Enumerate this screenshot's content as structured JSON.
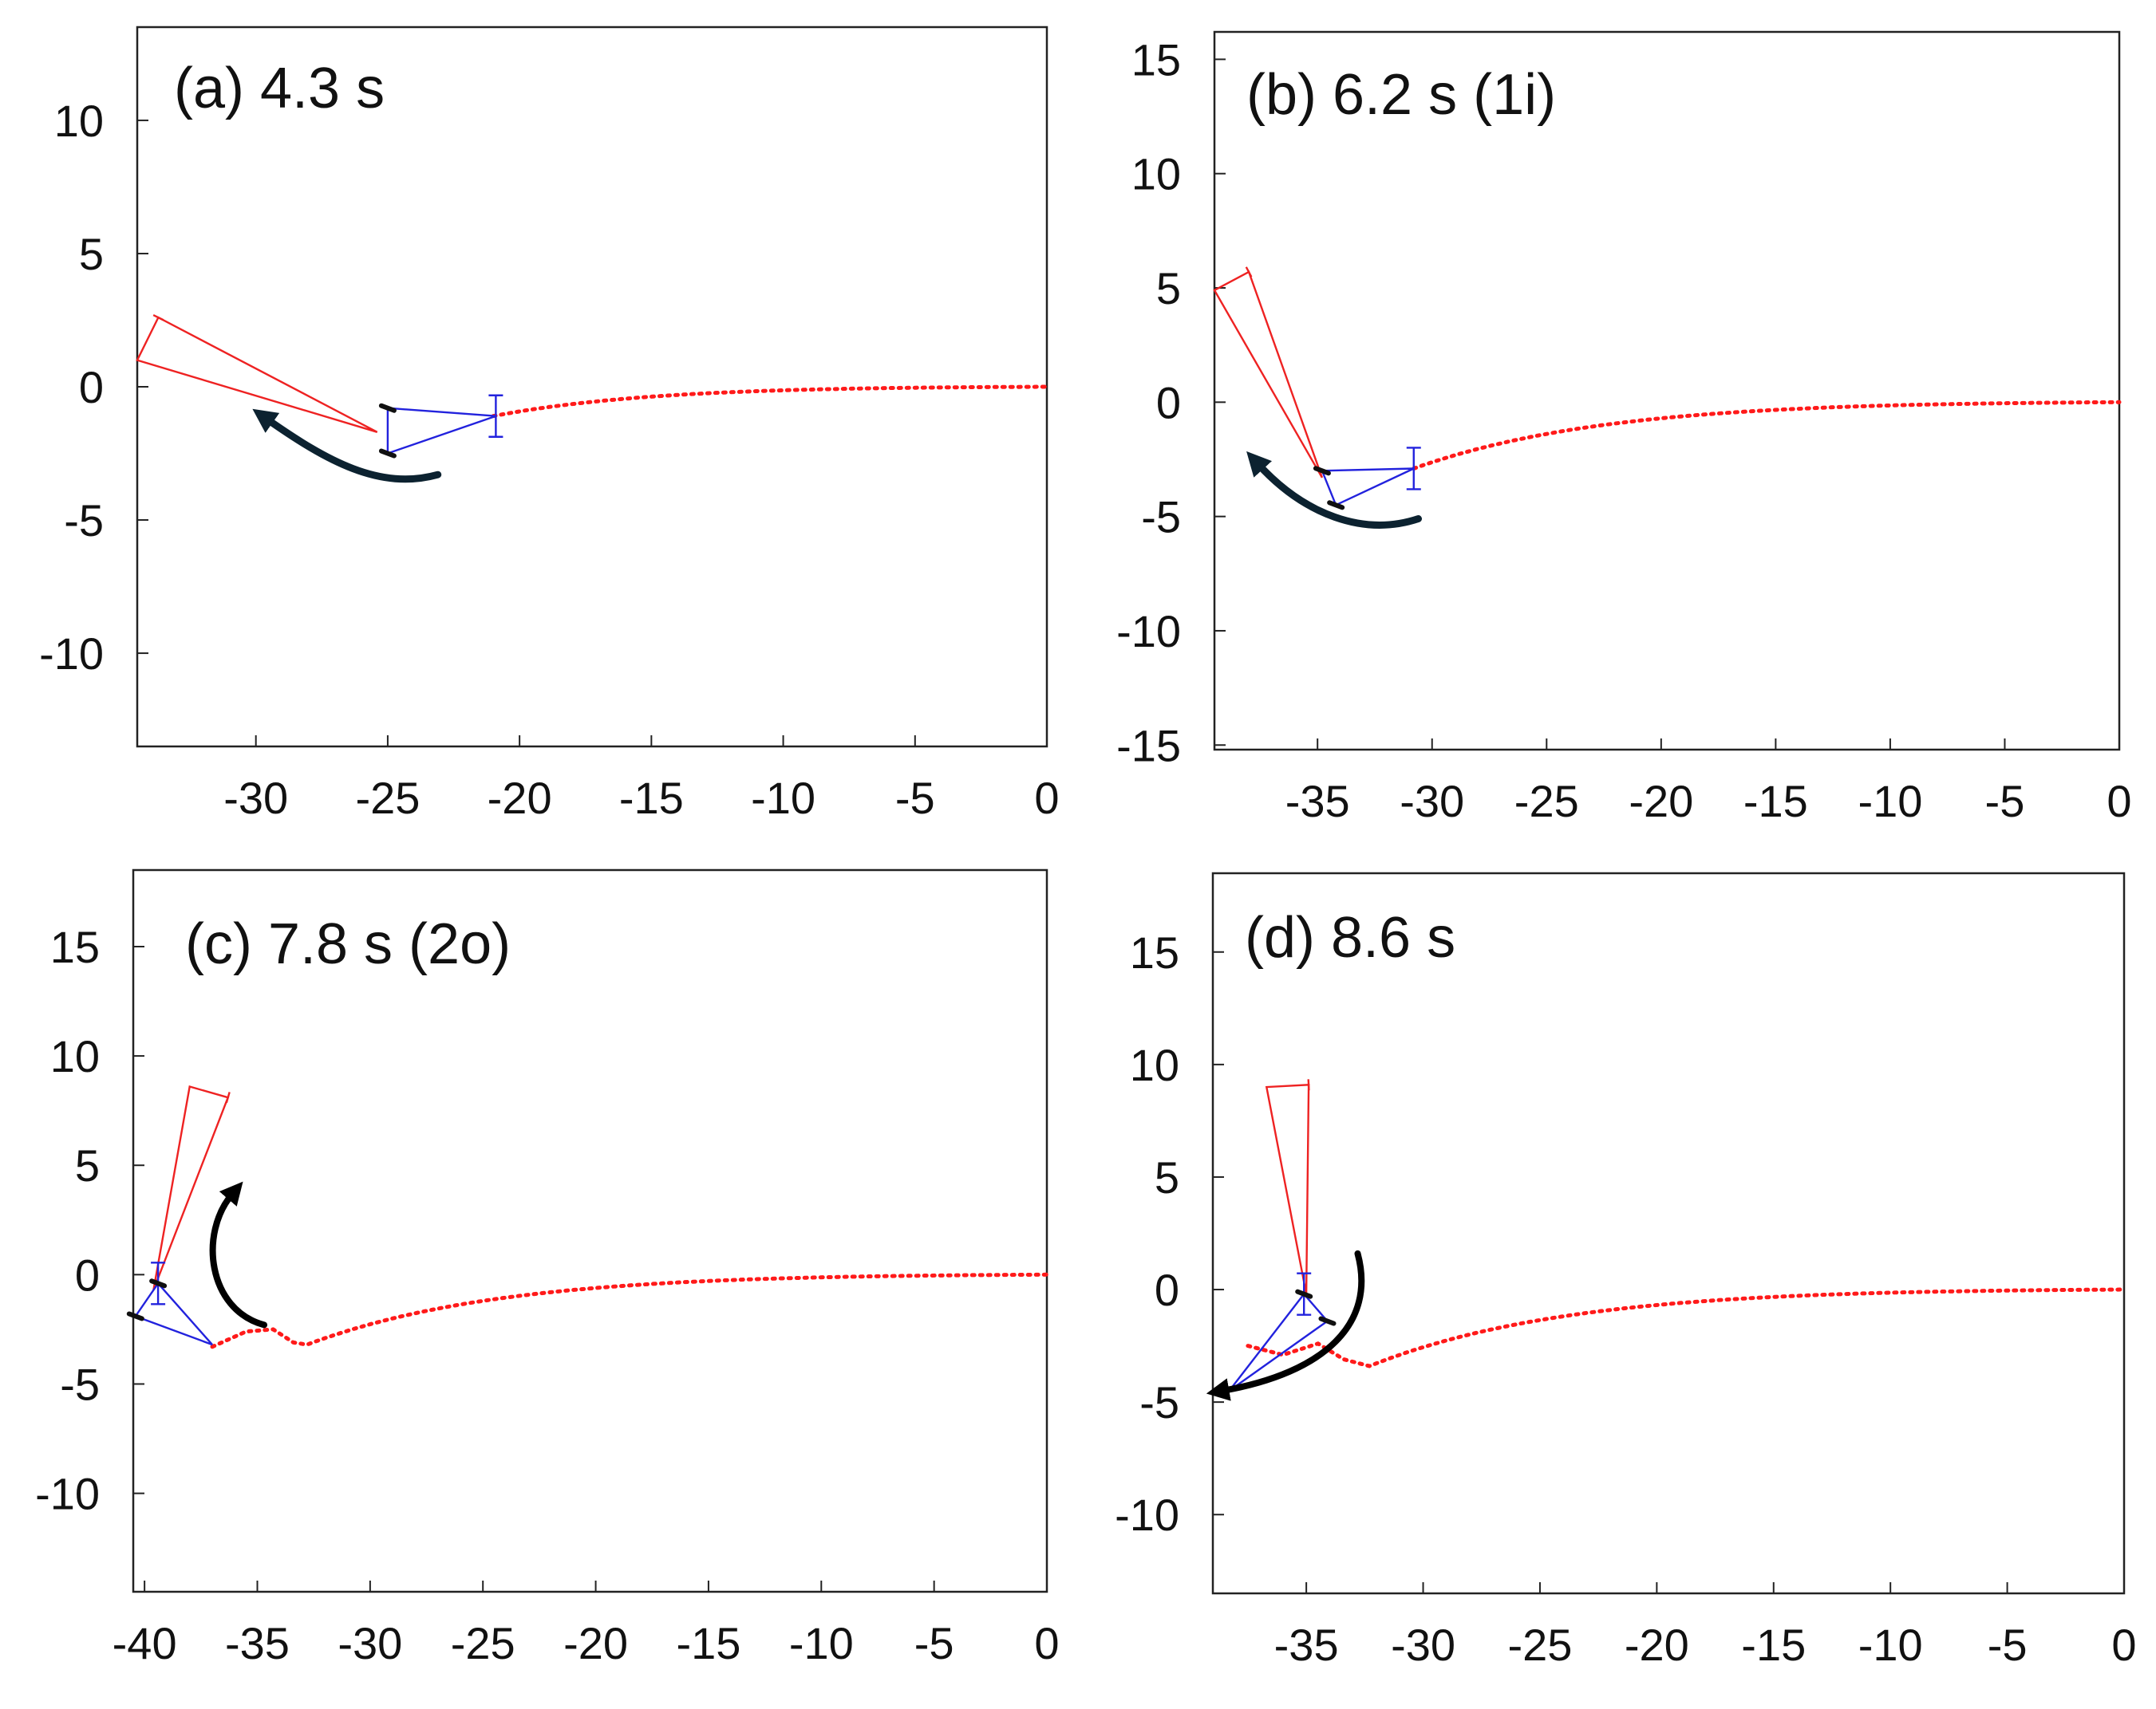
{
  "figure": {
    "description_panels": 4,
    "colors": {
      "trajectory": "#ff1a1a",
      "red_link": "#ee2222",
      "blue_link": "#2222dd",
      "joint": "#111111",
      "arrow": "#0c2230",
      "arrow_dark": "#000000"
    }
  },
  "chart_data": [
    {
      "type": "scatter",
      "panel": "a",
      "title": "(a) 4.3 s",
      "xlim": [
        -34.5,
        0
      ],
      "ylim": [
        -13.5,
        13.5
      ],
      "xticks": [
        -30,
        -25,
        -20,
        -15,
        -10,
        -5,
        0
      ],
      "xtick_labels": [
        "-30",
        "-25",
        "-20",
        "-15",
        "-10",
        "-5",
        "0"
      ],
      "yticks": [
        -10,
        -5,
        0,
        5,
        10
      ],
      "ytick_labels": [
        "-10",
        "-5",
        "0",
        "5",
        "10"
      ],
      "trajectory": {
        "x0": -21,
        "y0": -1.1,
        "decay": 8,
        "wiggle": null
      },
      "red_link": [
        [
          -25.4,
          -1.7
        ],
        [
          -34.5,
          1.0
        ],
        [
          -33.7,
          2.6
        ]
      ],
      "blue_link": [
        [
          -25.0,
          -0.8
        ],
        [
          -20.9,
          -1.1
        ],
        [
          -25.0,
          -2.5
        ]
      ],
      "joints": [
        [
          -25.0,
          -0.8
        ],
        [
          -25.0,
          -2.5
        ]
      ],
      "arrow": {
        "path": [
          [
            -23.1,
            -3.3
          ],
          [
            -25.3,
            -3.9
          ],
          [
            -27.3,
            -2.8
          ],
          [
            -29.6,
            -1.2
          ]
        ],
        "color": "#0c2230",
        "width": 9
      }
    },
    {
      "type": "scatter",
      "panel": "b",
      "title": "(b) 6.2 s (1i)",
      "xlim": [
        -39.5,
        0
      ],
      "ylim": [
        -15.2,
        16.2
      ],
      "xticks": [
        -35,
        -30,
        -25,
        -20,
        -15,
        -10,
        -5,
        0
      ],
      "xtick_labels": [
        "-35",
        "-30",
        "-25",
        "-20",
        "-15",
        "-10",
        "-5",
        "0"
      ],
      "yticks": [
        -15,
        -10,
        -5,
        0,
        5,
        10,
        15
      ],
      "ytick_labels": [
        "-15",
        "-10",
        "-5",
        "0",
        "5",
        "10",
        "15"
      ],
      "trajectory": {
        "x0": -30.8,
        "y0": -2.9,
        "decay": 11,
        "wiggle": null
      },
      "red_link": [
        [
          -34.8,
          -3.3
        ],
        [
          -39.5,
          4.9
        ],
        [
          -38.0,
          5.7
        ]
      ],
      "blue_link": [
        [
          -34.8,
          -3.0
        ],
        [
          -30.8,
          -2.9
        ],
        [
          -34.2,
          -4.5
        ]
      ],
      "joints": [
        [
          -34.8,
          -3.0
        ],
        [
          -34.2,
          -4.5
        ]
      ],
      "arrow": {
        "path": [
          [
            -30.6,
            -5.1
          ],
          [
            -33.0,
            -5.9
          ],
          [
            -35.6,
            -4.9
          ],
          [
            -37.6,
            -2.7
          ]
        ],
        "color": "#0c2230",
        "width": 9
      }
    },
    {
      "type": "scatter",
      "panel": "c",
      "title": "(c) 7.8 s (2o)",
      "xlim": [
        -40.5,
        0
      ],
      "ylim": [
        -14.5,
        18.5
      ],
      "xticks": [
        -40,
        -35,
        -30,
        -25,
        -20,
        -15,
        -10,
        -5,
        0
      ],
      "xtick_labels": [
        "-40",
        "-35",
        "-30",
        "-25",
        "-20",
        "-15",
        "-10",
        "-5",
        "0"
      ],
      "yticks": [
        -10,
        -5,
        0,
        5,
        10,
        15
      ],
      "ytick_labels": [
        "-10",
        "-5",
        "0",
        "5",
        "10",
        "15"
      ],
      "trajectory": {
        "x0": -32.8,
        "y0": -3.2,
        "decay": 11,
        "wiggle": [
          [
            -37.0,
            -3.3
          ],
          [
            -35.5,
            -2.6
          ],
          [
            -34.3,
            -2.5
          ],
          [
            -33.4,
            -3.1
          ],
          [
            -32.8,
            -3.2
          ]
        ]
      },
      "red_link": [
        [
          -39.6,
          -0.7
        ],
        [
          -38.0,
          8.6
        ],
        [
          -36.3,
          8.1
        ]
      ],
      "blue_link": [
        [
          -40.4,
          -1.9
        ],
        [
          -39.4,
          -0.4
        ],
        [
          -37.0,
          -3.2
        ]
      ],
      "joints": [
        [
          -40.4,
          -1.9
        ],
        [
          -39.4,
          -0.4
        ]
      ],
      "arrow": {
        "path": [
          [
            -34.7,
            -2.3
          ],
          [
            -37.2,
            -1.6
          ],
          [
            -37.6,
            1.9
          ],
          [
            -36.1,
            3.7
          ]
        ],
        "color": "#000000",
        "width": 8
      }
    },
    {
      "type": "scatter",
      "panel": "d",
      "title": "(d) 8.6 s",
      "xlim": [
        -39.0,
        0
      ],
      "ylim": [
        -13.5,
        18.5
      ],
      "xticks": [
        -35,
        -30,
        -25,
        -20,
        -15,
        -10,
        -5,
        0
      ],
      "xtick_labels": [
        "-35",
        "-30",
        "-25",
        "-20",
        "-15",
        "-10",
        "-5",
        "0"
      ],
      "yticks": [
        -10,
        -5,
        0,
        5,
        10,
        15
      ],
      "ytick_labels": [
        "-10",
        "-5",
        "0",
        "5",
        "10",
        "15"
      ],
      "trajectory": {
        "x0": -32.3,
        "y0": -3.4,
        "decay": 11,
        "wiggle": [
          [
            -37.5,
            -2.5
          ],
          [
            -36.0,
            -2.9
          ],
          [
            -34.5,
            -2.4
          ],
          [
            -33.4,
            -3.1
          ],
          [
            -32.3,
            -3.4
          ]
        ]
      },
      "red_link": [
        [
          -35.0,
          -0.2
        ],
        [
          -36.7,
          9.0
        ],
        [
          -34.9,
          9.1
        ]
      ],
      "blue_link": [
        [
          -38.3,
          -4.5
        ],
        [
          -35.1,
          -0.2
        ],
        [
          -34.1,
          -1.4
        ]
      ],
      "joints": [
        [
          -35.1,
          -0.2
        ],
        [
          -34.1,
          -1.4
        ]
      ],
      "arrow": {
        "path": [
          [
            -32.8,
            1.6
          ],
          [
            -32.0,
            -1.5
          ],
          [
            -34.2,
            -3.7
          ],
          [
            -38.6,
            -4.5
          ]
        ],
        "color": "#000000",
        "width": 8
      }
    }
  ]
}
